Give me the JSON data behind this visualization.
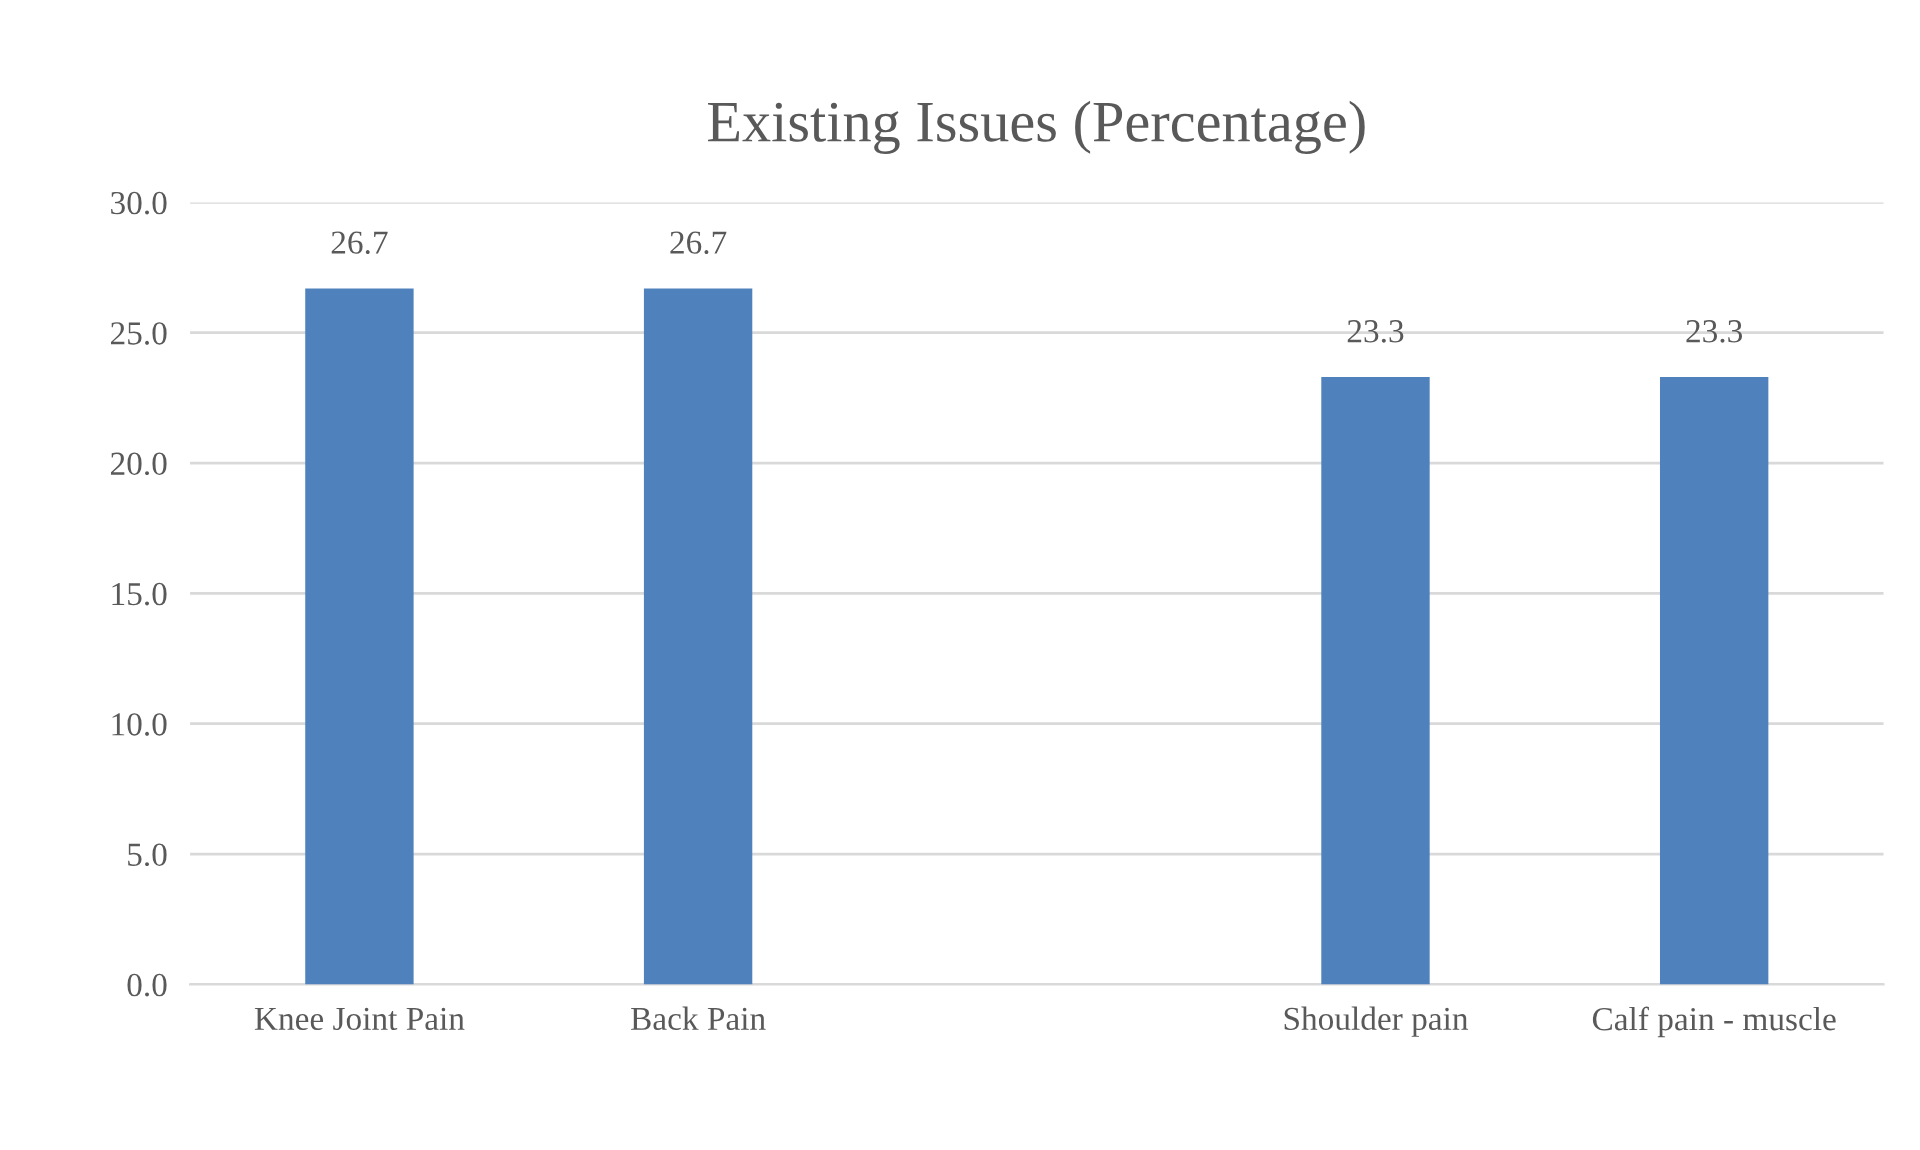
{
  "chart_data": {
    "type": "bar",
    "title": "Existing Issues (Percentage)",
    "categories": [
      "Knee Joint Pain",
      "Back Pain",
      null,
      "Shoulder pain",
      "Calf pain - muscle"
    ],
    "values": [
      26.7,
      26.7,
      null,
      23.3,
      23.3
    ],
    "color": "#4f81bd",
    "ylim": [
      0,
      30
    ],
    "yticks": [
      {
        "value": 0,
        "label": "0.0"
      },
      {
        "value": 5,
        "label": "5.0"
      },
      {
        "value": 10,
        "label": "10.0"
      },
      {
        "value": 15,
        "label": "15.0"
      },
      {
        "value": 20,
        "label": "20.0"
      },
      {
        "value": 25,
        "label": "25.0"
      },
      {
        "value": 30,
        "label": "30.0"
      }
    ],
    "grid": "y",
    "legend": false,
    "data_labels": true
  }
}
